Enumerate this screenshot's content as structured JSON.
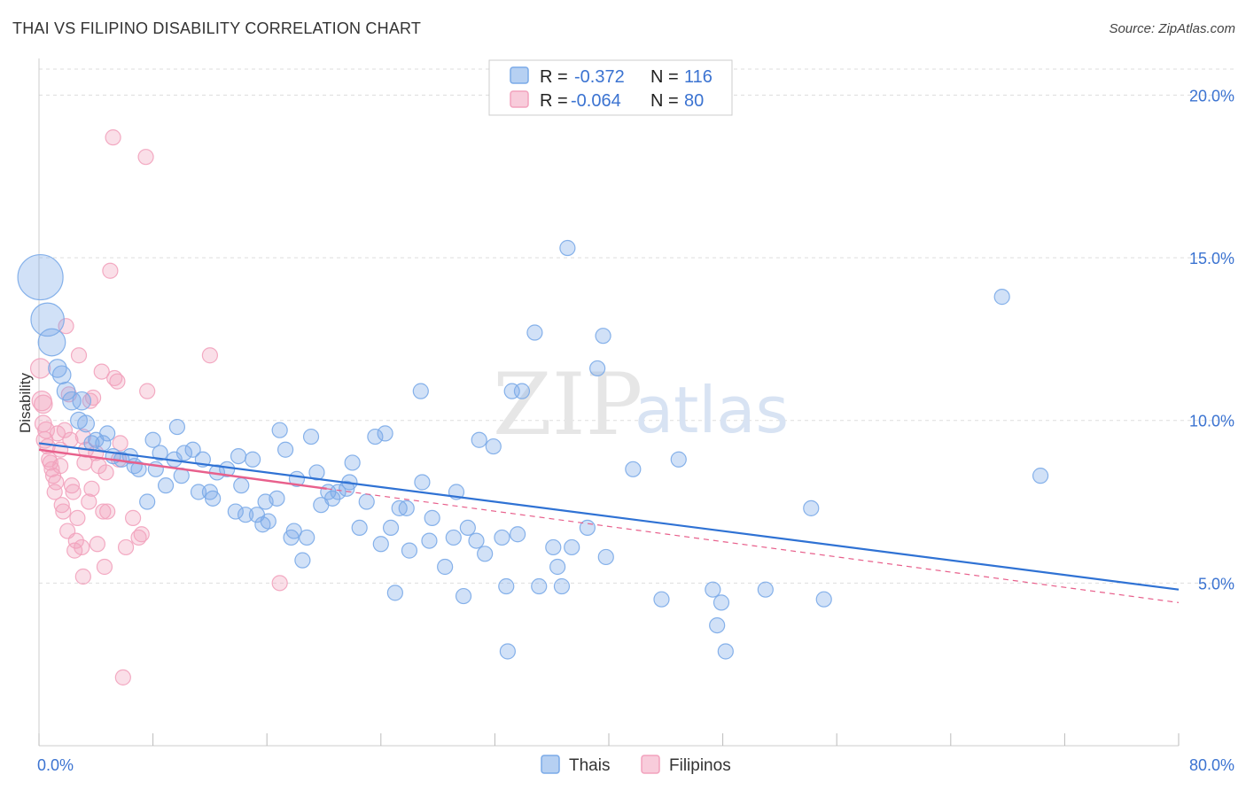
{
  "title": "THAI VS FILIPINO DISABILITY CORRELATION CHART",
  "source": "Source: ZipAtlas.com",
  "watermark": {
    "part1": "ZIP",
    "part2": "atlas"
  },
  "colors": {
    "thais": "#7aaae8",
    "thais_line": "#2f72d4",
    "filipinos": "#f2a2bd",
    "filipinos_line": "#e8608c",
    "tick": "#3b73d1",
    "grid": "#dddddd"
  },
  "legend": {
    "rows": [
      {
        "r_label": "R =",
        "r_value": "-0.372",
        "n_label": "N =",
        "n_value": "116"
      },
      {
        "r_label": "R =",
        "r_value": "-0.064",
        "n_label": "N =",
        "n_value": "80"
      }
    ]
  },
  "bottom_legend": {
    "thais": "Thais",
    "filipinos": "Filipinos"
  },
  "chart_data": {
    "type": "scatter",
    "title": "THAI VS FILIPINO DISABILITY CORRELATION CHART",
    "xlabel": "",
    "ylabel": "Disability",
    "xlim": [
      0,
      80
    ],
    "ylim": [
      0,
      20.8
    ],
    "x_tick_labels": [
      "0.0%",
      "80.0%"
    ],
    "y_ticks": [
      5,
      10,
      15,
      20
    ],
    "y_tick_labels": [
      "5.0%",
      "10.0%",
      "15.0%",
      "20.0%"
    ],
    "grid": true,
    "legend_position": "top-center",
    "series": [
      {
        "name": "Thais",
        "r": -0.372,
        "n": 116,
        "trend": {
          "x": [
            0,
            80
          ],
          "y": [
            9.3,
            4.8
          ]
        },
        "points": [
          {
            "x": 0.1,
            "y": 14.4,
            "s": 3
          },
          {
            "x": 0.6,
            "y": 13.1,
            "s": 2.2
          },
          {
            "x": 0.9,
            "y": 12.4,
            "s": 1.8
          },
          {
            "x": 1.3,
            "y": 11.6,
            "s": 1.2
          },
          {
            "x": 1.6,
            "y": 11.4,
            "s": 1.2
          },
          {
            "x": 1.9,
            "y": 10.9,
            "s": 1.2
          },
          {
            "x": 2.3,
            "y": 10.6,
            "s": 1.2
          },
          {
            "x": 3.0,
            "y": 10.6,
            "s": 1.2
          },
          {
            "x": 2.8,
            "y": 10.0,
            "s": 1.1
          },
          {
            "x": 3.3,
            "y": 9.9,
            "s": 1.1
          },
          {
            "x": 4.0,
            "y": 9.4,
            "s": 1
          },
          {
            "x": 4.8,
            "y": 9.6,
            "s": 1
          },
          {
            "x": 3.7,
            "y": 9.3,
            "s": 1
          },
          {
            "x": 4.5,
            "y": 9.3,
            "s": 1
          },
          {
            "x": 5.2,
            "y": 8.9,
            "s": 1
          },
          {
            "x": 5.8,
            "y": 8.8,
            "s": 1
          },
          {
            "x": 6.4,
            "y": 8.9,
            "s": 1
          },
          {
            "x": 6.7,
            "y": 8.6,
            "s": 1
          },
          {
            "x": 7.0,
            "y": 8.5,
            "s": 1
          },
          {
            "x": 7.6,
            "y": 7.5,
            "s": 1
          },
          {
            "x": 8.0,
            "y": 9.4,
            "s": 1
          },
          {
            "x": 8.2,
            "y": 8.5,
            "s": 1
          },
          {
            "x": 8.5,
            "y": 9.0,
            "s": 1
          },
          {
            "x": 8.9,
            "y": 8.0,
            "s": 1
          },
          {
            "x": 9.5,
            "y": 8.8,
            "s": 1
          },
          {
            "x": 9.7,
            "y": 9.8,
            "s": 1
          },
          {
            "x": 10.2,
            "y": 9.0,
            "s": 1
          },
          {
            "x": 10.8,
            "y": 9.1,
            "s": 1
          },
          {
            "x": 10.0,
            "y": 8.3,
            "s": 1
          },
          {
            "x": 11.2,
            "y": 7.8,
            "s": 1
          },
          {
            "x": 11.5,
            "y": 8.8,
            "s": 1
          },
          {
            "x": 12.0,
            "y": 7.8,
            "s": 1
          },
          {
            "x": 12.5,
            "y": 8.4,
            "s": 1
          },
          {
            "x": 12.2,
            "y": 7.6,
            "s": 1
          },
          {
            "x": 13.2,
            "y": 8.5,
            "s": 1
          },
          {
            "x": 13.8,
            "y": 7.2,
            "s": 1
          },
          {
            "x": 14.2,
            "y": 8.0,
            "s": 1
          },
          {
            "x": 14.0,
            "y": 8.9,
            "s": 1
          },
          {
            "x": 14.5,
            "y": 7.1,
            "s": 1
          },
          {
            "x": 15.0,
            "y": 8.8,
            "s": 1
          },
          {
            "x": 15.3,
            "y": 7.1,
            "s": 1
          },
          {
            "x": 15.7,
            "y": 6.8,
            "s": 1
          },
          {
            "x": 15.9,
            "y": 7.5,
            "s": 1
          },
          {
            "x": 16.1,
            "y": 6.9,
            "s": 1
          },
          {
            "x": 16.7,
            "y": 7.6,
            "s": 1
          },
          {
            "x": 16.9,
            "y": 9.7,
            "s": 1
          },
          {
            "x": 17.3,
            "y": 9.1,
            "s": 1
          },
          {
            "x": 17.7,
            "y": 6.4,
            "s": 1
          },
          {
            "x": 17.9,
            "y": 6.6,
            "s": 1
          },
          {
            "x": 18.1,
            "y": 8.2,
            "s": 1
          },
          {
            "x": 18.5,
            "y": 5.7,
            "s": 1
          },
          {
            "x": 18.8,
            "y": 6.4,
            "s": 1
          },
          {
            "x": 19.1,
            "y": 9.5,
            "s": 1
          },
          {
            "x": 19.5,
            "y": 8.4,
            "s": 1
          },
          {
            "x": 19.8,
            "y": 7.4,
            "s": 1
          },
          {
            "x": 20.3,
            "y": 7.8,
            "s": 1
          },
          {
            "x": 20.6,
            "y": 7.6,
            "s": 1
          },
          {
            "x": 21.0,
            "y": 7.8,
            "s": 1
          },
          {
            "x": 21.6,
            "y": 7.9,
            "s": 1
          },
          {
            "x": 21.8,
            "y": 8.1,
            "s": 1
          },
          {
            "x": 22.0,
            "y": 8.7,
            "s": 1
          },
          {
            "x": 22.5,
            "y": 6.7,
            "s": 1
          },
          {
            "x": 23.0,
            "y": 7.5,
            "s": 1
          },
          {
            "x": 23.6,
            "y": 9.5,
            "s": 1
          },
          {
            "x": 24.0,
            "y": 6.2,
            "s": 1
          },
          {
            "x": 24.3,
            "y": 9.6,
            "s": 1
          },
          {
            "x": 24.7,
            "y": 6.7,
            "s": 1
          },
          {
            "x": 25.3,
            "y": 7.3,
            "s": 1
          },
          {
            "x": 25.0,
            "y": 4.7,
            "s": 1
          },
          {
            "x": 25.8,
            "y": 7.3,
            "s": 1
          },
          {
            "x": 26.0,
            "y": 6.0,
            "s": 1
          },
          {
            "x": 26.8,
            "y": 10.9,
            "s": 1
          },
          {
            "x": 26.9,
            "y": 8.1,
            "s": 1
          },
          {
            "x": 27.4,
            "y": 6.3,
            "s": 1
          },
          {
            "x": 27.6,
            "y": 7.0,
            "s": 1
          },
          {
            "x": 28.5,
            "y": 5.5,
            "s": 1
          },
          {
            "x": 29.1,
            "y": 6.4,
            "s": 1
          },
          {
            "x": 29.3,
            "y": 7.8,
            "s": 1
          },
          {
            "x": 29.8,
            "y": 4.6,
            "s": 1
          },
          {
            "x": 30.1,
            "y": 6.7,
            "s": 1
          },
          {
            "x": 30.7,
            "y": 6.3,
            "s": 1
          },
          {
            "x": 30.9,
            "y": 9.4,
            "s": 1
          },
          {
            "x": 31.3,
            "y": 5.9,
            "s": 1
          },
          {
            "x": 31.9,
            "y": 9.2,
            "s": 1
          },
          {
            "x": 32.5,
            "y": 6.4,
            "s": 1
          },
          {
            "x": 32.8,
            "y": 4.9,
            "s": 1
          },
          {
            "x": 32.9,
            "y": 2.9,
            "s": 1
          },
          {
            "x": 33.2,
            "y": 10.9,
            "s": 1
          },
          {
            "x": 33.6,
            "y": 6.5,
            "s": 1
          },
          {
            "x": 33.9,
            "y": 10.9,
            "s": 1
          },
          {
            "x": 34.8,
            "y": 12.7,
            "s": 1
          },
          {
            "x": 35.1,
            "y": 4.9,
            "s": 1
          },
          {
            "x": 36.1,
            "y": 6.1,
            "s": 1
          },
          {
            "x": 36.4,
            "y": 5.5,
            "s": 1
          },
          {
            "x": 36.7,
            "y": 4.9,
            "s": 1
          },
          {
            "x": 37.1,
            "y": 15.3,
            "s": 1
          },
          {
            "x": 37.4,
            "y": 6.1,
            "s": 1
          },
          {
            "x": 38.5,
            "y": 6.7,
            "s": 1
          },
          {
            "x": 39.2,
            "y": 11.6,
            "s": 1
          },
          {
            "x": 39.6,
            "y": 12.6,
            "s": 1
          },
          {
            "x": 39.8,
            "y": 5.8,
            "s": 1
          },
          {
            "x": 41.7,
            "y": 8.5,
            "s": 1
          },
          {
            "x": 43.7,
            "y": 4.5,
            "s": 1
          },
          {
            "x": 44.9,
            "y": 8.8,
            "s": 1
          },
          {
            "x": 47.3,
            "y": 4.8,
            "s": 1
          },
          {
            "x": 47.6,
            "y": 3.7,
            "s": 1
          },
          {
            "x": 47.9,
            "y": 4.4,
            "s": 1
          },
          {
            "x": 48.2,
            "y": 2.9,
            "s": 1
          },
          {
            "x": 51.0,
            "y": 4.8,
            "s": 1
          },
          {
            "x": 54.2,
            "y": 7.3,
            "s": 1
          },
          {
            "x": 55.1,
            "y": 4.5,
            "s": 1
          },
          {
            "x": 67.6,
            "y": 13.8,
            "s": 1
          },
          {
            "x": 70.3,
            "y": 8.3,
            "s": 1
          }
        ]
      },
      {
        "name": "Filipinos",
        "r": -0.064,
        "n": 80,
        "trend": {
          "x": [
            0,
            20.2
          ],
          "y": [
            9.1,
            7.9
          ]
        },
        "trend_dashed": {
          "x": [
            20.2,
            80
          ],
          "y": [
            7.9,
            4.4
          ]
        },
        "points": [
          {
            "x": 0.1,
            "y": 11.6,
            "s": 1.3
          },
          {
            "x": 0.2,
            "y": 10.6,
            "s": 1.3
          },
          {
            "x": 0.3,
            "y": 10.5,
            "s": 1.2
          },
          {
            "x": 0.3,
            "y": 9.9,
            "s": 1.1
          },
          {
            "x": 0.5,
            "y": 9.7,
            "s": 1.1
          },
          {
            "x": 0.4,
            "y": 9.4,
            "s": 1.1
          },
          {
            "x": 0.6,
            "y": 9.2,
            "s": 1
          },
          {
            "x": 0.7,
            "y": 8.8,
            "s": 1
          },
          {
            "x": 0.8,
            "y": 8.7,
            "s": 1
          },
          {
            "x": 0.9,
            "y": 8.5,
            "s": 1
          },
          {
            "x": 1.0,
            "y": 8.3,
            "s": 1
          },
          {
            "x": 1.2,
            "y": 8.1,
            "s": 1
          },
          {
            "x": 1.1,
            "y": 7.8,
            "s": 1
          },
          {
            "x": 1.3,
            "y": 9.6,
            "s": 1
          },
          {
            "x": 1.5,
            "y": 9.1,
            "s": 1
          },
          {
            "x": 1.5,
            "y": 8.6,
            "s": 1
          },
          {
            "x": 1.6,
            "y": 7.4,
            "s": 1
          },
          {
            "x": 1.7,
            "y": 7.2,
            "s": 1
          },
          {
            "x": 1.8,
            "y": 9.7,
            "s": 1
          },
          {
            "x": 1.9,
            "y": 12.9,
            "s": 1
          },
          {
            "x": 2.0,
            "y": 6.6,
            "s": 1
          },
          {
            "x": 2.1,
            "y": 10.8,
            "s": 1
          },
          {
            "x": 2.2,
            "y": 9.4,
            "s": 1
          },
          {
            "x": 2.3,
            "y": 8.0,
            "s": 1
          },
          {
            "x": 2.4,
            "y": 7.8,
            "s": 1
          },
          {
            "x": 2.5,
            "y": 6.0,
            "s": 1
          },
          {
            "x": 2.6,
            "y": 6.3,
            "s": 1
          },
          {
            "x": 2.8,
            "y": 12.0,
            "s": 1
          },
          {
            "x": 2.7,
            "y": 7.0,
            "s": 1
          },
          {
            "x": 3.0,
            "y": 6.1,
            "s": 1
          },
          {
            "x": 3.1,
            "y": 9.5,
            "s": 1
          },
          {
            "x": 3.2,
            "y": 8.7,
            "s": 1
          },
          {
            "x": 3.1,
            "y": 5.2,
            "s": 1
          },
          {
            "x": 3.3,
            "y": 9.1,
            "s": 1
          },
          {
            "x": 3.5,
            "y": 7.5,
            "s": 1
          },
          {
            "x": 3.6,
            "y": 10.6,
            "s": 1
          },
          {
            "x": 3.7,
            "y": 7.9,
            "s": 1
          },
          {
            "x": 3.8,
            "y": 10.7,
            "s": 1
          },
          {
            "x": 4.0,
            "y": 9.0,
            "s": 1
          },
          {
            "x": 4.1,
            "y": 6.2,
            "s": 1
          },
          {
            "x": 4.2,
            "y": 8.6,
            "s": 1
          },
          {
            "x": 4.4,
            "y": 11.5,
            "s": 1
          },
          {
            "x": 4.5,
            "y": 7.2,
            "s": 1
          },
          {
            "x": 4.6,
            "y": 5.5,
            "s": 1
          },
          {
            "x": 4.7,
            "y": 8.4,
            "s": 1
          },
          {
            "x": 4.8,
            "y": 7.2,
            "s": 1
          },
          {
            "x": 5.0,
            "y": 14.6,
            "s": 1
          },
          {
            "x": 5.2,
            "y": 18.7,
            "s": 1
          },
          {
            "x": 5.3,
            "y": 11.3,
            "s": 1
          },
          {
            "x": 5.5,
            "y": 11.2,
            "s": 1
          },
          {
            "x": 5.6,
            "y": 8.8,
            "s": 1
          },
          {
            "x": 5.7,
            "y": 9.3,
            "s": 1
          },
          {
            "x": 5.9,
            "y": 2.1,
            "s": 1
          },
          {
            "x": 6.1,
            "y": 6.1,
            "s": 1
          },
          {
            "x": 6.6,
            "y": 7.0,
            "s": 1
          },
          {
            "x": 7.0,
            "y": 6.4,
            "s": 1
          },
          {
            "x": 7.2,
            "y": 6.5,
            "s": 1
          },
          {
            "x": 7.5,
            "y": 18.1,
            "s": 1
          },
          {
            "x": 7.6,
            "y": 10.9,
            "s": 1
          },
          {
            "x": 12.0,
            "y": 12.0,
            "s": 1
          },
          {
            "x": 16.9,
            "y": 5.0,
            "s": 1
          }
        ]
      }
    ]
  }
}
